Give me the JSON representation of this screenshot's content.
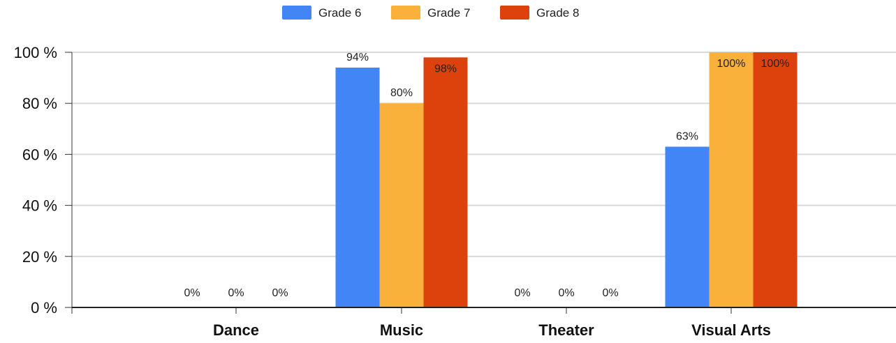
{
  "chart_data": {
    "type": "bar",
    "categories": [
      "Dance",
      "Music",
      "Theater",
      "Visual Arts"
    ],
    "series": [
      {
        "name": "Grade 6",
        "color": "#4285f4",
        "values": [
          0,
          94,
          0,
          63
        ],
        "labels": [
          "0%",
          "94%",
          "0%",
          "63%"
        ]
      },
      {
        "name": "Grade 7",
        "color": "#f9b13c",
        "values": [
          0,
          80,
          0,
          100
        ],
        "labels": [
          "0%",
          "80%",
          "0%",
          "100%"
        ]
      },
      {
        "name": "Grade 8",
        "color": "#dd420c",
        "values": [
          0,
          98,
          0,
          100
        ],
        "labels": [
          "0%",
          "98%",
          "0%",
          "100%"
        ]
      }
    ],
    "yticks": [
      "0 %",
      "20 %",
      "40 %",
      "60 %",
      "80 %",
      "100 %"
    ],
    "ylim": [
      0,
      100
    ],
    "grid": true,
    "legend_position": "top-center",
    "xlabel": "",
    "ylabel": ""
  }
}
